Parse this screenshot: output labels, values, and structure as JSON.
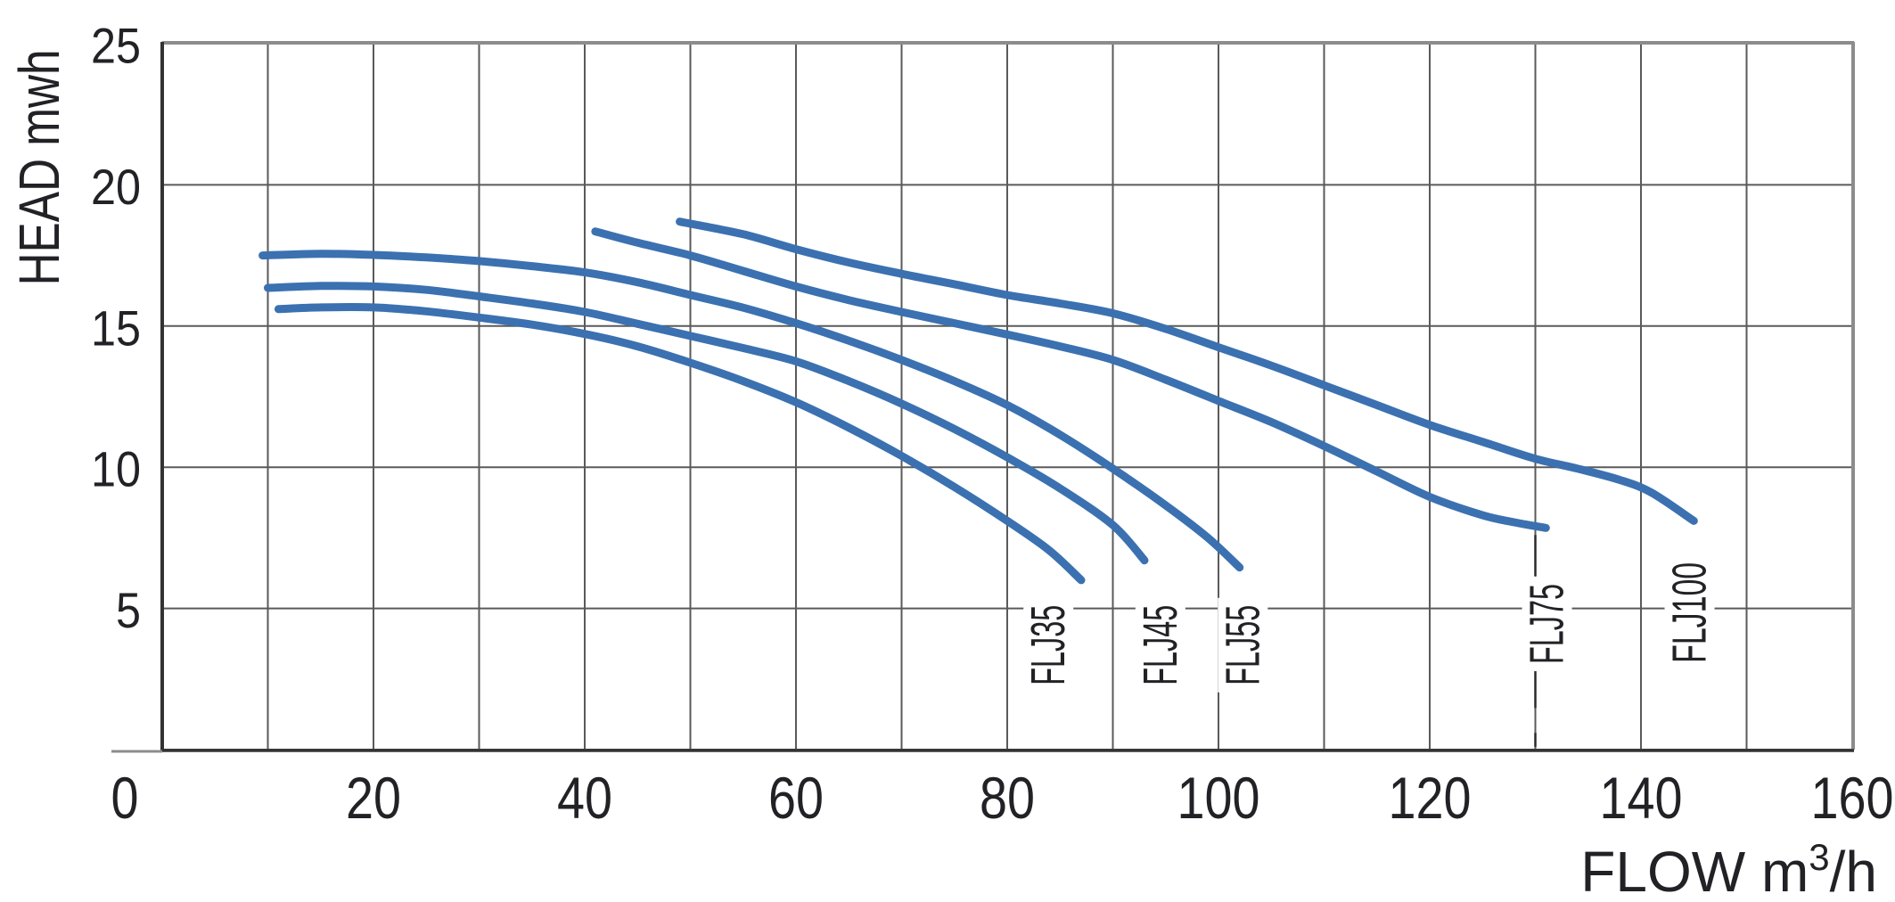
{
  "page": {
    "background": "#ffffff"
  },
  "chart_data": {
    "type": "line",
    "title": "",
    "ylabel": "HEAD mwh",
    "xlabel_parts": {
      "pre": "FLOW m",
      "sup": "3",
      "post": "/h"
    },
    "xlim": [
      0,
      160
    ],
    "ylim": [
      0,
      25
    ],
    "xticks": [
      0,
      20,
      40,
      60,
      80,
      100,
      120,
      140,
      160
    ],
    "yticks": [
      5,
      10,
      15,
      20,
      25
    ],
    "x_gridline_step": 10,
    "y_gridline_step": 5,
    "grid": true,
    "legend_position": "rotated-labels-at-curve-ends",
    "series": [
      {
        "name": "FLJ35",
        "label_at": {
          "flow": 83.9,
          "head": 3.7
        },
        "points": [
          [
            11,
            15.6
          ],
          [
            15,
            15.66
          ],
          [
            20,
            15.66
          ],
          [
            25,
            15.52
          ],
          [
            30,
            15.3
          ],
          [
            35,
            15.05
          ],
          [
            40,
            14.72
          ],
          [
            45,
            14.28
          ],
          [
            50,
            13.7
          ],
          [
            55,
            13.05
          ],
          [
            60,
            12.3
          ],
          [
            65,
            11.4
          ],
          [
            70,
            10.4
          ],
          [
            75,
            9.3
          ],
          [
            80,
            8.1
          ],
          [
            84,
            7.05
          ],
          [
            87,
            6.0
          ]
        ]
      },
      {
        "name": "FLJ45",
        "label_at": {
          "flow": 94.5,
          "head": 3.7
        },
        "points": [
          [
            10,
            16.35
          ],
          [
            15,
            16.42
          ],
          [
            20,
            16.4
          ],
          [
            25,
            16.28
          ],
          [
            30,
            16.05
          ],
          [
            35,
            15.8
          ],
          [
            40,
            15.5
          ],
          [
            45,
            15.08
          ],
          [
            50,
            14.65
          ],
          [
            55,
            14.22
          ],
          [
            60,
            13.75
          ],
          [
            65,
            13.05
          ],
          [
            70,
            12.25
          ],
          [
            75,
            11.35
          ],
          [
            80,
            10.35
          ],
          [
            85,
            9.25
          ],
          [
            90,
            7.95
          ],
          [
            93,
            6.7
          ]
        ]
      },
      {
        "name": "FLJ55",
        "label_at": {
          "flow": 102.3,
          "head": 3.7
        },
        "points": [
          [
            9.5,
            17.5
          ],
          [
            15,
            17.56
          ],
          [
            20,
            17.52
          ],
          [
            25,
            17.43
          ],
          [
            30,
            17.3
          ],
          [
            35,
            17.12
          ],
          [
            40,
            16.9
          ],
          [
            45,
            16.55
          ],
          [
            50,
            16.1
          ],
          [
            55,
            15.65
          ],
          [
            60,
            15.1
          ],
          [
            65,
            14.48
          ],
          [
            70,
            13.8
          ],
          [
            75,
            13.05
          ],
          [
            80,
            12.2
          ],
          [
            85,
            11.15
          ],
          [
            90,
            9.95
          ],
          [
            95,
            8.65
          ],
          [
            99,
            7.5
          ],
          [
            102,
            6.45
          ]
        ]
      },
      {
        "name": "FLJ75",
        "label_at": {
          "flow": 131.1,
          "head": 4.45
        },
        "leader_line": {
          "flow": 130.0,
          "from_head": 7.6,
          "to_head": 0.1,
          "dashed": true
        },
        "points": [
          [
            41,
            18.35
          ],
          [
            45,
            17.95
          ],
          [
            50,
            17.5
          ],
          [
            55,
            16.95
          ],
          [
            60,
            16.4
          ],
          [
            65,
            15.92
          ],
          [
            70,
            15.5
          ],
          [
            75,
            15.1
          ],
          [
            80,
            14.7
          ],
          [
            85,
            14.28
          ],
          [
            90,
            13.8
          ],
          [
            95,
            13.1
          ],
          [
            100,
            12.35
          ],
          [
            105,
            11.6
          ],
          [
            110,
            10.75
          ],
          [
            115,
            9.85
          ],
          [
            120,
            8.95
          ],
          [
            125,
            8.3
          ],
          [
            128,
            8.05
          ],
          [
            131,
            7.85
          ]
        ]
      },
      {
        "name": "FLJ100",
        "label_at": {
          "flow": 144.6,
          "head": 4.85
        },
        "points": [
          [
            49,
            18.7
          ],
          [
            55,
            18.25
          ],
          [
            60,
            17.72
          ],
          [
            65,
            17.25
          ],
          [
            70,
            16.85
          ],
          [
            75,
            16.48
          ],
          [
            80,
            16.1
          ],
          [
            85,
            15.8
          ],
          [
            90,
            15.45
          ],
          [
            95,
            14.9
          ],
          [
            100,
            14.25
          ],
          [
            105,
            13.6
          ],
          [
            110,
            12.9
          ],
          [
            115,
            12.2
          ],
          [
            120,
            11.5
          ],
          [
            125,
            10.9
          ],
          [
            130,
            10.3
          ],
          [
            134,
            9.95
          ],
          [
            138,
            9.55
          ],
          [
            141,
            9.1
          ],
          [
            145,
            8.1
          ]
        ]
      }
    ],
    "colors": {
      "curve": "#3b71b0",
      "grid_inner": "#5a5a5a",
      "border_dark": "#333333",
      "border_light": "#8c8c8c",
      "text": "#222226",
      "leader": "#2a2a2a",
      "background": "#ffffff"
    }
  }
}
